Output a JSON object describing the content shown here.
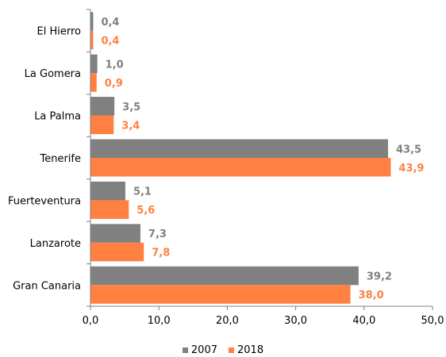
{
  "chart_data": {
    "type": "bar",
    "orientation": "horizontal",
    "categories": [
      "El Hierro",
      "La Gomera",
      "La Palma",
      "Tenerife",
      "Fuerteventura",
      "Lanzarote",
      "Gran Canaria"
    ],
    "series": [
      {
        "name": "2007",
        "color": "#808080",
        "values": [
          0.4,
          1.0,
          3.5,
          43.5,
          5.1,
          7.3,
          39.2
        ],
        "labels": [
          "0,4",
          "1,0",
          "3,5",
          "43,5",
          "5,1",
          "7,3",
          "39,2"
        ]
      },
      {
        "name": "2018",
        "color": "#ff8040",
        "values": [
          0.4,
          0.9,
          3.4,
          43.9,
          5.6,
          7.8,
          38.0
        ],
        "labels": [
          "0,4",
          "0,9",
          "3,4",
          "43,9",
          "5,6",
          "7,8",
          "38,0"
        ]
      }
    ],
    "xlim": [
      0,
      50
    ],
    "xticks": [
      0,
      10,
      20,
      30,
      40,
      50
    ],
    "xtick_labels": [
      "0,0",
      "10,0",
      "20,0",
      "30,0",
      "40,0",
      "50,0"
    ],
    "grid": false,
    "legend_position": "bottom"
  }
}
